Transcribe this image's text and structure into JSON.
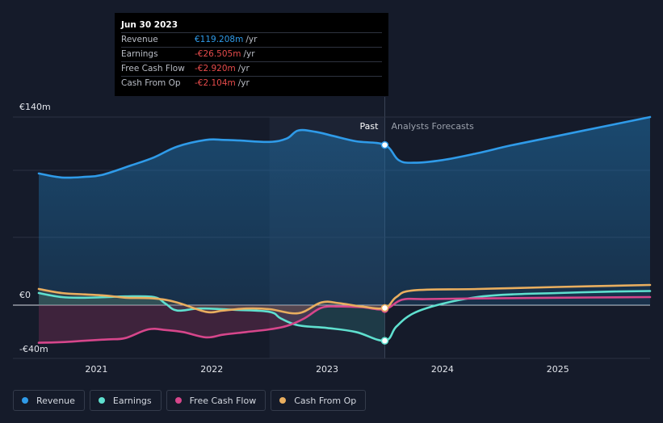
{
  "chart_data": {
    "type": "line",
    "y_tick_labels": [
      {
        "value": 140,
        "label": "€140m"
      },
      {
        "value": 0,
        "label": "€0"
      },
      {
        "value": -40,
        "label": "-€40m"
      }
    ],
    "x_tick_labels": [
      {
        "value": 2021.0,
        "label": "2021"
      },
      {
        "value": 2022.0,
        "label": "2022"
      },
      {
        "value": 2023.0,
        "label": "2023"
      },
      {
        "value": 2024.0,
        "label": "2024"
      },
      {
        "value": 2025.0,
        "label": "2025"
      }
    ],
    "ylim": [
      -40,
      140
    ],
    "xlim": [
      2020.2,
      2025.8
    ],
    "past_label": "Past",
    "forecast_label": "Analysts Forecasts",
    "divider_x": 2023.5,
    "highlight_start_x": 2022.5,
    "series": [
      {
        "name": "Revenue",
        "color": "#2f9be9",
        "points": [
          [
            2020.5,
            98
          ],
          [
            2020.7,
            95
          ],
          [
            2020.9,
            95.5
          ],
          [
            2021.05,
            97
          ],
          [
            2021.3,
            104
          ],
          [
            2021.5,
            110
          ],
          [
            2021.7,
            118
          ],
          [
            2021.95,
            123
          ],
          [
            2022.1,
            123
          ],
          [
            2022.25,
            122.5
          ],
          [
            2022.5,
            121.5
          ],
          [
            2022.65,
            124
          ],
          [
            2022.75,
            130
          ],
          [
            2022.9,
            129
          ],
          [
            2023.05,
            126
          ],
          [
            2023.25,
            122
          ],
          [
            2023.5,
            119.208
          ],
          [
            2023.62,
            108
          ],
          [
            2023.75,
            106
          ],
          [
            2024.0,
            108
          ],
          [
            2024.3,
            113
          ],
          [
            2024.6,
            119
          ],
          [
            2025.0,
            126
          ],
          [
            2025.4,
            133
          ],
          [
            2025.8,
            140
          ]
        ]
      },
      {
        "name": "Earnings",
        "color": "#5fe0cf",
        "points": [
          [
            2020.5,
            9
          ],
          [
            2020.7,
            6
          ],
          [
            2020.9,
            5.5
          ],
          [
            2021.1,
            6
          ],
          [
            2021.25,
            6.5
          ],
          [
            2021.5,
            6
          ],
          [
            2021.6,
            1
          ],
          [
            2021.7,
            -4
          ],
          [
            2021.9,
            -2.5
          ],
          [
            2022.2,
            -3.5
          ],
          [
            2022.5,
            -5
          ],
          [
            2022.6,
            -10
          ],
          [
            2022.75,
            -15
          ],
          [
            2023.0,
            -17
          ],
          [
            2023.25,
            -20
          ],
          [
            2023.5,
            -26.505
          ],
          [
            2023.6,
            -16
          ],
          [
            2023.75,
            -6
          ],
          [
            2024.0,
            1
          ],
          [
            2024.3,
            6
          ],
          [
            2024.6,
            8
          ],
          [
            2025.0,
            9
          ],
          [
            2025.4,
            10
          ],
          [
            2025.8,
            10.5
          ]
        ]
      },
      {
        "name": "Free Cash Flow",
        "color": "#d6468b",
        "points": [
          [
            2020.5,
            -28
          ],
          [
            2020.7,
            -27.5
          ],
          [
            2020.9,
            -26.5
          ],
          [
            2021.1,
            -25.5
          ],
          [
            2021.25,
            -24.5
          ],
          [
            2021.45,
            -18
          ],
          [
            2021.6,
            -18.5
          ],
          [
            2021.75,
            -20
          ],
          [
            2021.95,
            -24
          ],
          [
            2022.1,
            -22
          ],
          [
            2022.3,
            -20
          ],
          [
            2022.5,
            -18
          ],
          [
            2022.65,
            -15.5
          ],
          [
            2022.8,
            -10
          ],
          [
            2022.95,
            -2
          ],
          [
            2023.1,
            -1
          ],
          [
            2023.3,
            -1.5
          ],
          [
            2023.5,
            -2.92
          ],
          [
            2023.65,
            4
          ],
          [
            2023.85,
            4.5
          ],
          [
            2024.3,
            5
          ],
          [
            2025.0,
            5.5
          ],
          [
            2025.8,
            6
          ]
        ]
      },
      {
        "name": "Cash From Op",
        "color": "#e9ae5f",
        "points": [
          [
            2020.5,
            12
          ],
          [
            2020.7,
            9
          ],
          [
            2020.9,
            8
          ],
          [
            2021.1,
            7
          ],
          [
            2021.25,
            5.5
          ],
          [
            2021.5,
            5
          ],
          [
            2021.7,
            2
          ],
          [
            2021.95,
            -5
          ],
          [
            2022.1,
            -4
          ],
          [
            2022.3,
            -2.5
          ],
          [
            2022.5,
            -3
          ],
          [
            2022.75,
            -6
          ],
          [
            2022.95,
            2
          ],
          [
            2023.1,
            1.5
          ],
          [
            2023.3,
            -1
          ],
          [
            2023.5,
            -2.104
          ],
          [
            2023.6,
            6
          ],
          [
            2023.75,
            11
          ],
          [
            2024.3,
            12
          ],
          [
            2025.0,
            13.5
          ],
          [
            2025.8,
            15
          ]
        ]
      }
    ]
  },
  "tooltip": {
    "date": "Jun 30 2023",
    "rows": [
      {
        "label": "Revenue",
        "value": "€119.208m",
        "unit": "/yr",
        "color": "#2f9be9"
      },
      {
        "label": "Earnings",
        "value": "-€26.505m",
        "unit": "/yr",
        "color": "#e64b4b"
      },
      {
        "label": "Free Cash Flow",
        "value": "-€2.920m",
        "unit": "/yr",
        "color": "#e64b4b"
      },
      {
        "label": "Cash From Op",
        "value": "-€2.104m",
        "unit": "/yr",
        "color": "#e64b4b"
      }
    ]
  },
  "legend": [
    {
      "label": "Revenue",
      "color": "#2f9be9"
    },
    {
      "label": "Earnings",
      "color": "#5fe0cf"
    },
    {
      "label": "Free Cash Flow",
      "color": "#d6468b"
    },
    {
      "label": "Cash From Op",
      "color": "#e9ae5f"
    }
  ]
}
